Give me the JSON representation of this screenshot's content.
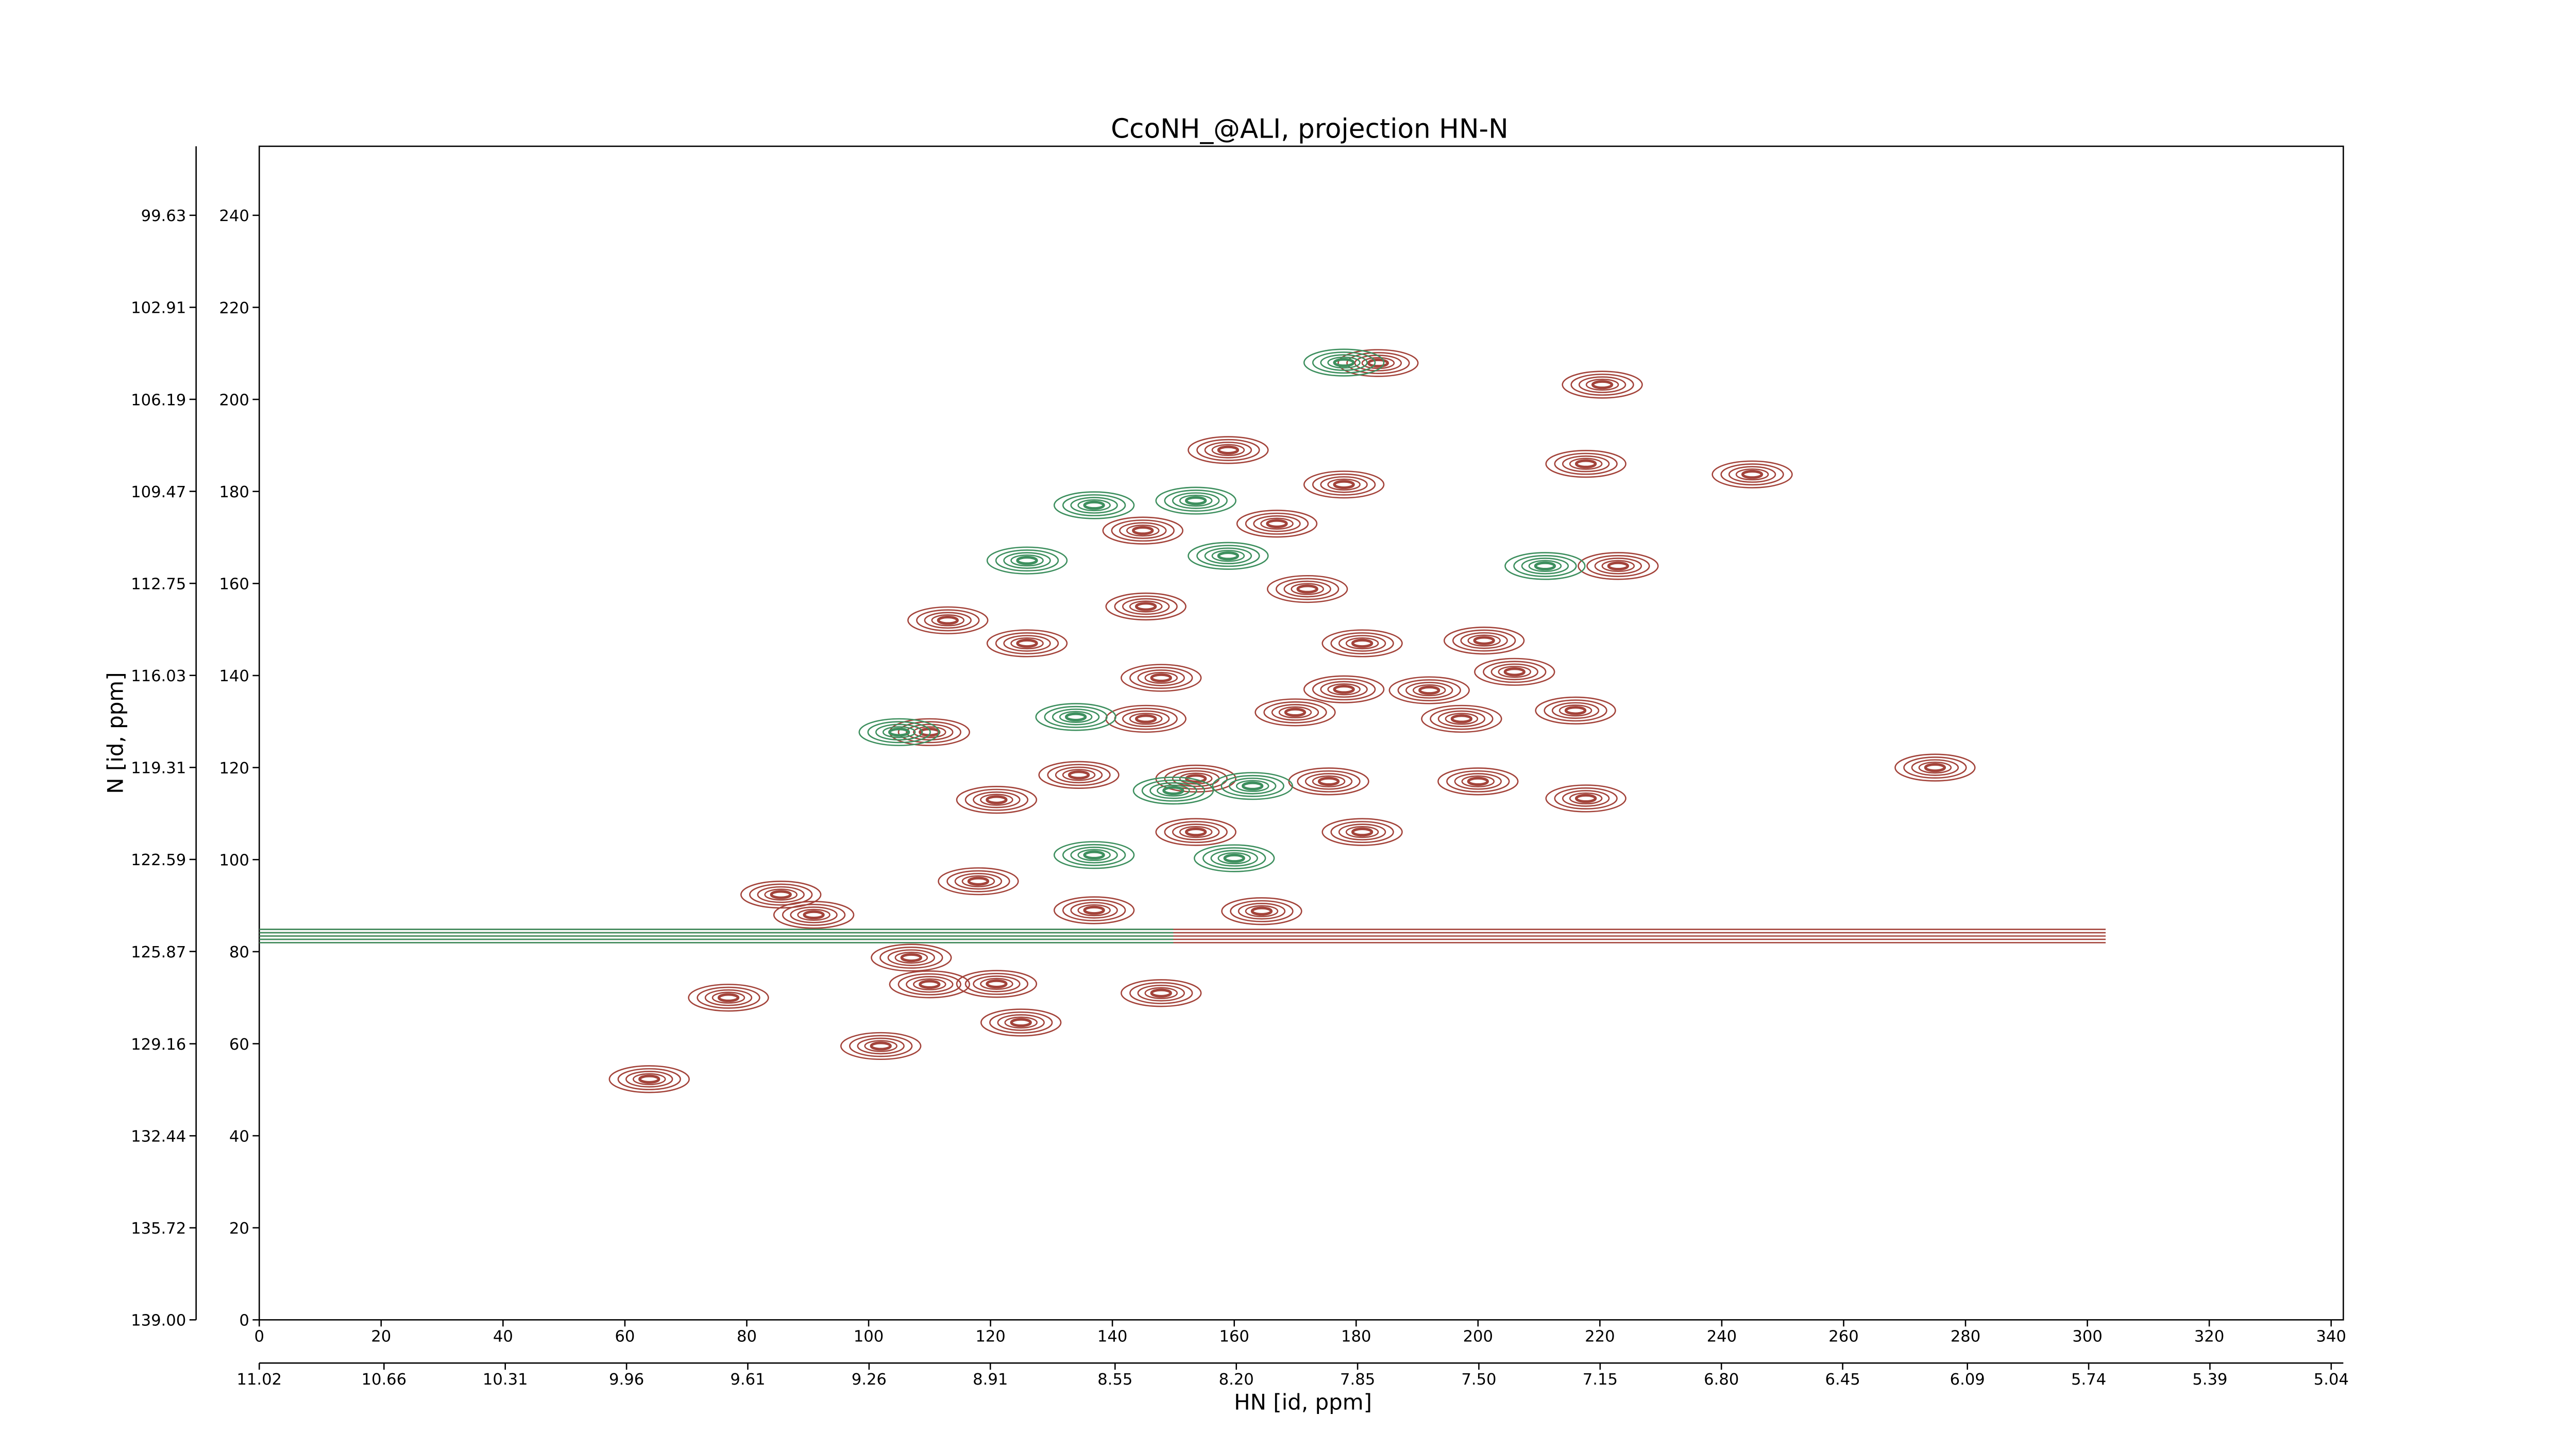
{
  "chart_data": {
    "type": "contour",
    "title": "CcoNH_@ALI, projection HN-N",
    "x_label": "HN [id, ppm]",
    "y_label": "N [id, ppm]",
    "xlim": [
      0,
      342
    ],
    "xticks": [
      0,
      20,
      40,
      60,
      80,
      100,
      120,
      140,
      160,
      180,
      200,
      220,
      240,
      260,
      280,
      300,
      320,
      340
    ],
    "ylim": [
      0,
      255
    ],
    "yticks": [
      0,
      20,
      40,
      60,
      80,
      100,
      120,
      140,
      160,
      180,
      200,
      220,
      240
    ],
    "x2lim": [
      11.02,
      5.005
    ],
    "x2ticks": [
      11.02,
      10.66,
      10.31,
      9.96,
      9.61,
      9.26,
      8.91,
      8.55,
      {
        "value": 8.2,
        "label": "8.20"
      },
      7.85,
      {
        "value": 7.5,
        "label": "7.50"
      },
      7.15,
      {
        "value": 6.8,
        "label": "6.80"
      },
      6.45,
      6.09,
      5.74,
      5.39,
      5.04
    ],
    "y2lim": [
      139.0,
      97.17
    ],
    "y2ticks": [
      99.63,
      102.91,
      106.19,
      109.47,
      112.75,
      116.03,
      119.31,
      122.59,
      125.87,
      129.16,
      132.44,
      135.72,
      {
        "value": 139.0,
        "label": "139.00"
      }
    ],
    "series": [
      {
        "color": "#a3433a",
        "x": [
          183.6,
          220.4,
          159,
          217.7,
          245,
          178,
          167,
          145,
          223,
          172,
          145.5,
          113,
          126,
          181,
          201,
          206,
          148,
          178,
          192,
          110,
          145.5,
          170,
          197.3,
          216,
          275,
          134.5,
          153.7,
          175.5,
          200,
          217.7,
          121,
          153.7,
          181,
          118,
          85.6,
          137,
          164.5,
          91,
          107,
          121,
          110,
          148,
          77,
          125,
          102,
          64
        ],
        "y": [
          207.9,
          203.2,
          189,
          186,
          183.7,
          181.5,
          173,
          171.5,
          163.8,
          158.8,
          155,
          152,
          147,
          147,
          147.6,
          140.8,
          139.5,
          137,
          136.8,
          127.7,
          130.6,
          132,
          130.6,
          132.4,
          120,
          118.4,
          117.6,
          117,
          117,
          113.3,
          113,
          106,
          106,
          95.3,
          92.4,
          89,
          88.8,
          88,
          78.7,
          73,
          72.9,
          71,
          70,
          64.6,
          59.5,
          52.3
        ],
        "ridge_y": 83.4,
        "ridge_x": [
          0,
          303
        ]
      },
      {
        "color": "#3d8f5e",
        "x": [
          153.7,
          137,
          159,
          126,
          211,
          160,
          134,
          150,
          163,
          137,
          105,
          178
        ],
        "y": [
          178,
          177,
          166,
          165,
          163.8,
          100.3,
          131,
          115,
          116,
          101,
          127.7,
          208
        ],
        "ridge_y": 83.4,
        "ridge_x": [
          0,
          150
        ]
      }
    ]
  }
}
